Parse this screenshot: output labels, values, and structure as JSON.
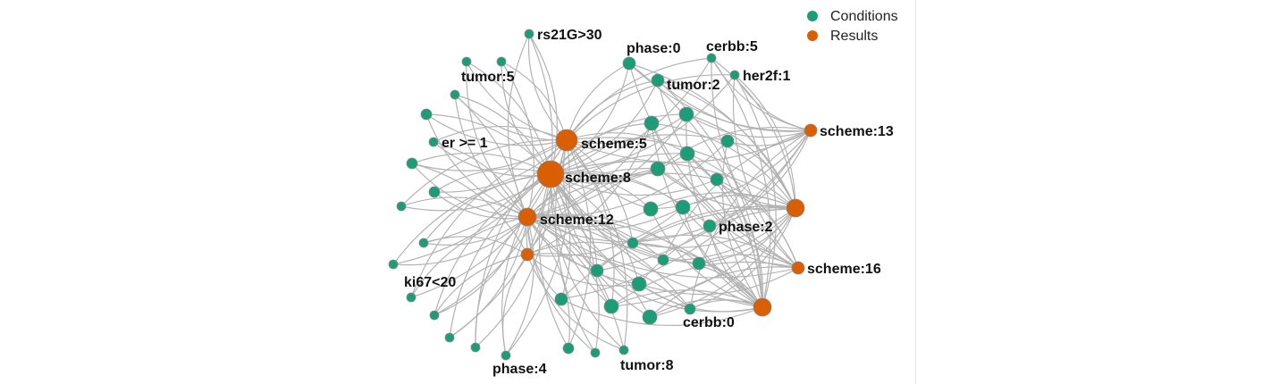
{
  "legend": {
    "items": [
      {
        "label": "Conditions",
        "color": "#1b9e77"
      },
      {
        "label": "Results",
        "color": "#d95f02"
      }
    ]
  },
  "colors": {
    "condition": "#1b9e77",
    "result": "#d95f02",
    "edge": "#b3b3b3"
  },
  "network": {
    "node_types": [
      "condition",
      "result"
    ],
    "labels": [
      "rs21G>30",
      "phase:0",
      "cerbb:5",
      "tumor:5",
      "tumor:2",
      "her2f:1",
      "scheme:13",
      "scheme:5",
      "er >= 1",
      "scheme:8",
      "scheme:12",
      "phase:2",
      "scheme:16",
      "ki67<20",
      "cerbb:0",
      "phase:4",
      "tumor:8"
    ]
  }
}
